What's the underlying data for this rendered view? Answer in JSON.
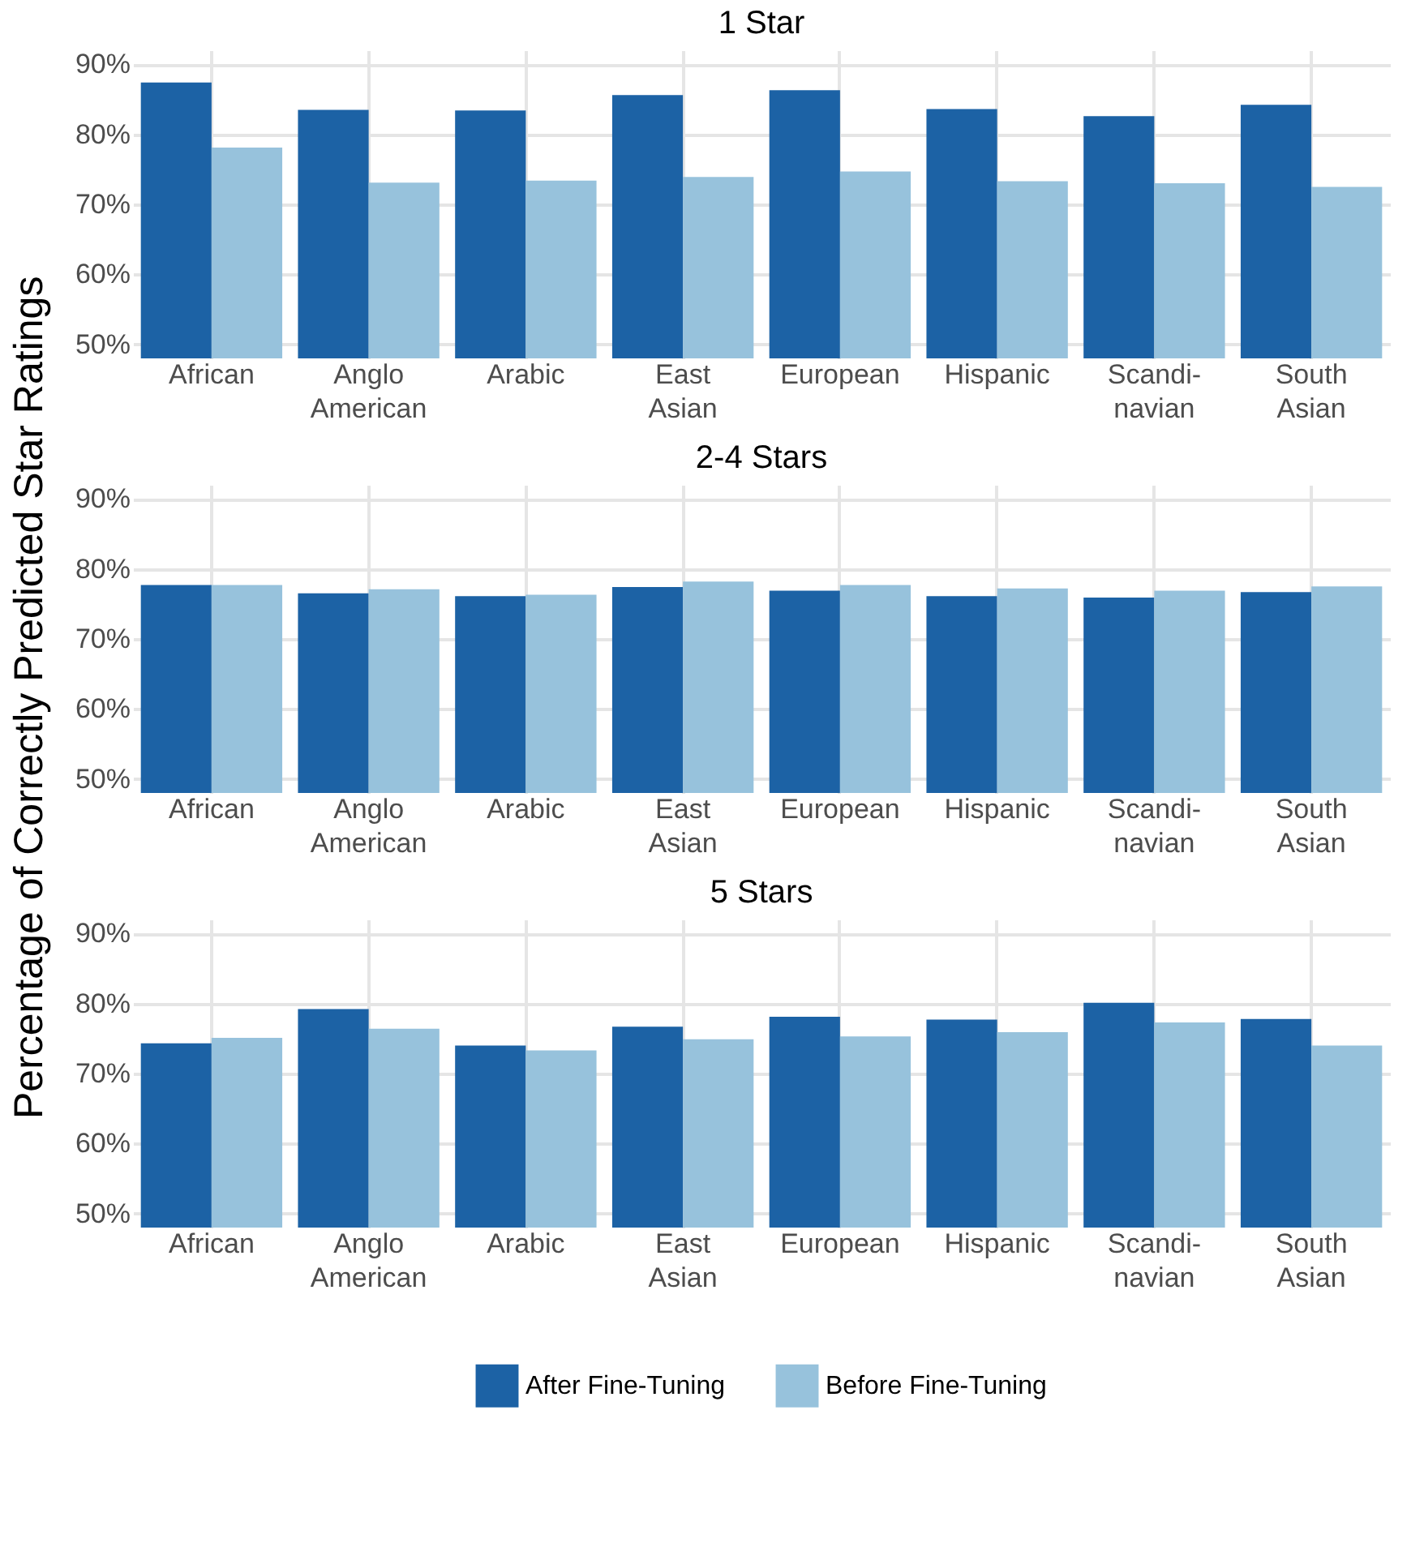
{
  "chart_data": [
    {
      "type": "bar",
      "title": "1 Star",
      "categories": [
        "African",
        "Anglo American",
        "Arabic",
        "East Asian",
        "European",
        "Hispanic",
        "Scandi-navian",
        "South Asian"
      ],
      "series": [
        {
          "color": "#1c62a5",
          "values": [
            87.4,
            83.5,
            83.4,
            85.6,
            86.3,
            83.6,
            82.6,
            84.2
          ]
        },
        {
          "color": "#97c2dc",
          "values": [
            78.1,
            73.1,
            73.4,
            73.9,
            74.7,
            73.3,
            73.0,
            72.5
          ]
        }
      ],
      "ylim": [
        48,
        92
      ],
      "yticks": [
        {
          "value": 50,
          "label": "50%"
        },
        {
          "value": 60,
          "label": "60%"
        },
        {
          "value": 70,
          "label": "70%"
        },
        {
          "value": 80,
          "label": "80%"
        },
        {
          "value": 90,
          "label": "90%"
        }
      ],
      "grid": true
    },
    {
      "type": "bar",
      "title": "2-4 Stars",
      "ylabel": "Percentage of Correctly Predicted Star Ratings",
      "categories": [
        "African",
        "Anglo American",
        "Arabic",
        "East Asian",
        "European",
        "Hispanic",
        "Scandi-navian",
        "South Asian"
      ],
      "series": [
        {
          "color": "#1c62a5",
          "values": [
            77.7,
            76.5,
            76.1,
            77.4,
            76.9,
            76.1,
            75.9,
            76.7
          ]
        },
        {
          "color": "#97c2dc",
          "values": [
            77.7,
            77.1,
            76.3,
            78.2,
            77.7,
            77.2,
            76.9,
            77.5
          ]
        }
      ],
      "ylim": [
        48,
        92
      ],
      "yticks": [
        {
          "value": 50,
          "label": "50%"
        },
        {
          "value": 60,
          "label": "60%"
        },
        {
          "value": 70,
          "label": "70%"
        },
        {
          "value": 80,
          "label": "80%"
        },
        {
          "value": 90,
          "label": "90%"
        }
      ],
      "grid": true
    },
    {
      "type": "bar",
      "title": "5 Stars",
      "categories": [
        "African",
        "Anglo American",
        "Arabic",
        "East Asian",
        "European",
        "Hispanic",
        "Scandi-navian",
        "South Asian"
      ],
      "series": [
        {
          "name": "After Fine-Tuning",
          "color": "#1c62a5",
          "values": [
            74.3,
            79.2,
            74.0,
            76.7,
            78.1,
            77.7,
            80.1,
            77.8
          ]
        },
        {
          "name": "Before Fine-Tuning",
          "color": "#97c2dc",
          "values": [
            75.1,
            76.4,
            73.3,
            74.9,
            75.3,
            75.9,
            77.3,
            74.0
          ]
        }
      ],
      "ylim": [
        48,
        92
      ],
      "yticks": [
        {
          "value": 50,
          "label": "50%"
        },
        {
          "value": 60,
          "label": "60%"
        },
        {
          "value": 70,
          "label": "70%"
        },
        {
          "value": 80,
          "label": "80%"
        },
        {
          "value": 90,
          "label": "90%"
        }
      ],
      "grid": true,
      "legend": "bottom"
    }
  ]
}
